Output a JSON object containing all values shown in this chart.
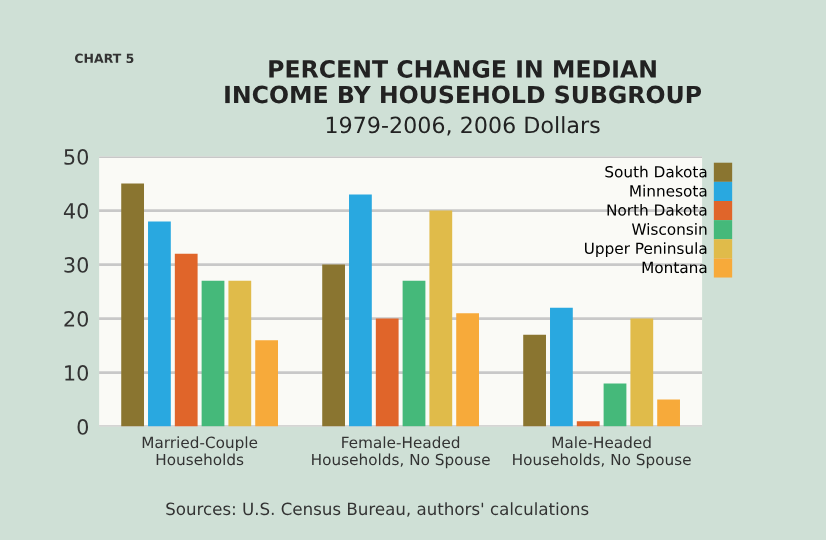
{
  "chart_data": {
    "type": "bar",
    "title": "PERCENT CHANGE IN MEDIAN\nINCOME BY HOUSEHOLD SUBGROUP",
    "subtitle": "1979-2006, 2006 Dollars",
    "categories": [
      "Married-Couple\nHouseholds",
      "Female-Headed\nHouseholds, No Spouse",
      "Male-Headed\nHouseholds, No Spouse"
    ],
    "series": [
      {
        "name": "South Dakota",
        "color": "#8a7530",
        "values": [
          45,
          30,
          17
        ]
      },
      {
        "name": "Minnesota",
        "color": "#29a8e0",
        "values": [
          38,
          43,
          22
        ]
      },
      {
        "name": "North Dakota",
        "color": "#e0652a",
        "values": [
          32,
          20,
          1
        ]
      },
      {
        "name": "Wisconsin",
        "color": "#45b97a",
        "values": [
          27,
          27,
          8
        ]
      },
      {
        "name": "Upper Peninsula",
        "color": "#e0bb4a",
        "values": [
          27,
          40,
          20
        ]
      },
      {
        "name": "Montana",
        "color": "#f7aa3a",
        "values": [
          16,
          21,
          5
        ]
      }
    ],
    "ylim": [
      0,
      50
    ],
    "yticks": [
      0,
      10,
      20,
      30,
      40,
      50
    ],
    "grid": "y",
    "legend": "top right",
    "annotations": [
      "CHART 5",
      "Sources: U.S. Census Bureau, authors' calculations"
    ]
  }
}
